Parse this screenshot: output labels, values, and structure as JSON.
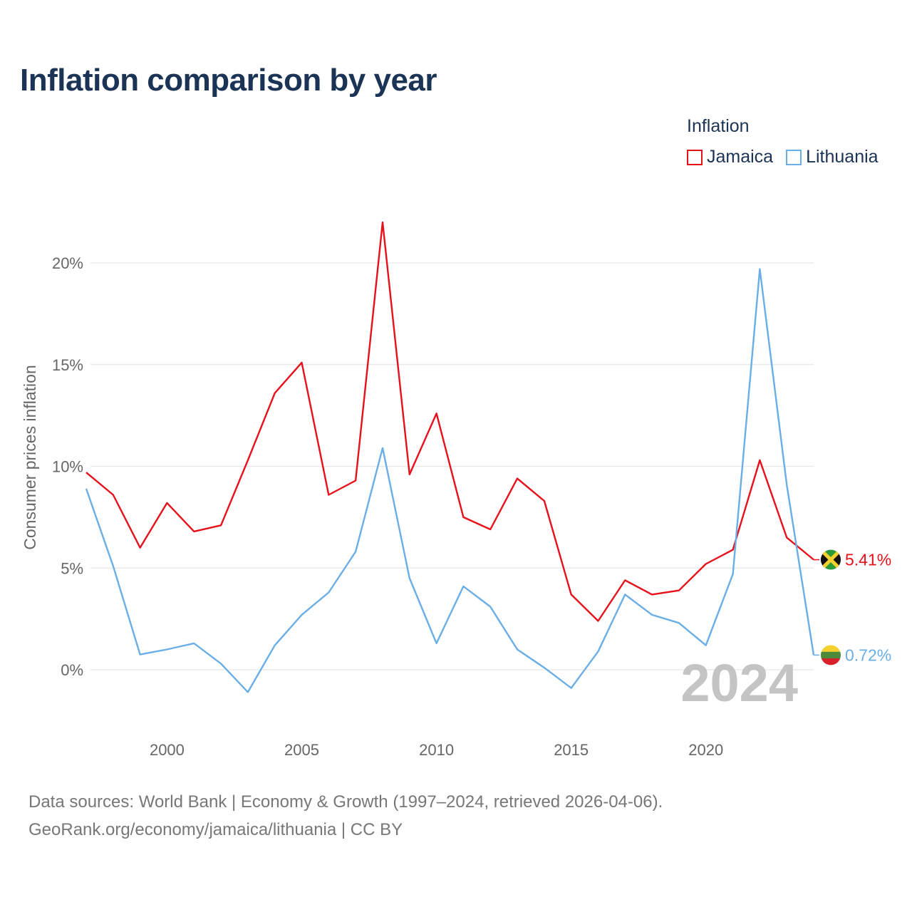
{
  "title": "Inflation comparison by year",
  "legend": {
    "title": "Inflation",
    "items": [
      {
        "label": "Jamaica",
        "color": "#e8101a"
      },
      {
        "label": "Lithuania",
        "color": "#6aaee8"
      }
    ]
  },
  "chart_data": {
    "type": "line",
    "title": "Inflation comparison by year",
    "xlabel": "",
    "ylabel": "Consumer prices inflation",
    "xlim": [
      1997,
      2024
    ],
    "ylim": [
      -3,
      22
    ],
    "x_ticks": [
      2000,
      2005,
      2010,
      2015,
      2020
    ],
    "y_ticks": [
      0,
      5,
      10,
      15,
      20
    ],
    "y_tick_labels": [
      "0%",
      "5%",
      "10%",
      "15%",
      "20%"
    ],
    "grid": true,
    "x": [
      1997,
      1998,
      1999,
      2000,
      2001,
      2002,
      2003,
      2004,
      2005,
      2006,
      2007,
      2008,
      2009,
      2010,
      2011,
      2012,
      2013,
      2014,
      2015,
      2016,
      2017,
      2018,
      2019,
      2020,
      2021,
      2022,
      2023,
      2024
    ],
    "series": [
      {
        "name": "Jamaica",
        "color": "#e8101a",
        "end_label": "5.41%",
        "values": [
          9.7,
          8.6,
          6.0,
          8.2,
          6.8,
          7.1,
          10.3,
          13.6,
          15.1,
          8.6,
          9.3,
          22.0,
          9.6,
          12.6,
          7.5,
          6.9,
          9.4,
          8.3,
          3.7,
          2.4,
          4.4,
          3.7,
          3.9,
          5.2,
          5.9,
          10.3,
          6.5,
          5.41
        ]
      },
      {
        "name": "Lithuania",
        "color": "#6aaee8",
        "end_label": "0.72%",
        "values": [
          8.9,
          5.1,
          0.75,
          1.0,
          1.3,
          0.3,
          -1.1,
          1.2,
          2.7,
          3.8,
          5.8,
          10.9,
          4.5,
          1.3,
          4.1,
          3.1,
          1.0,
          0.1,
          -0.9,
          0.9,
          3.7,
          2.7,
          2.3,
          1.2,
          4.7,
          19.7,
          9.1,
          0.72
        ]
      }
    ],
    "watermark": "2024"
  },
  "footer": {
    "line1": "Data sources: World Bank | Economy & Growth (1997–2024, retrieved 2026-04-06).",
    "line2": "GeoRank.org/economy/jamaica/lithuania | CC BY"
  }
}
